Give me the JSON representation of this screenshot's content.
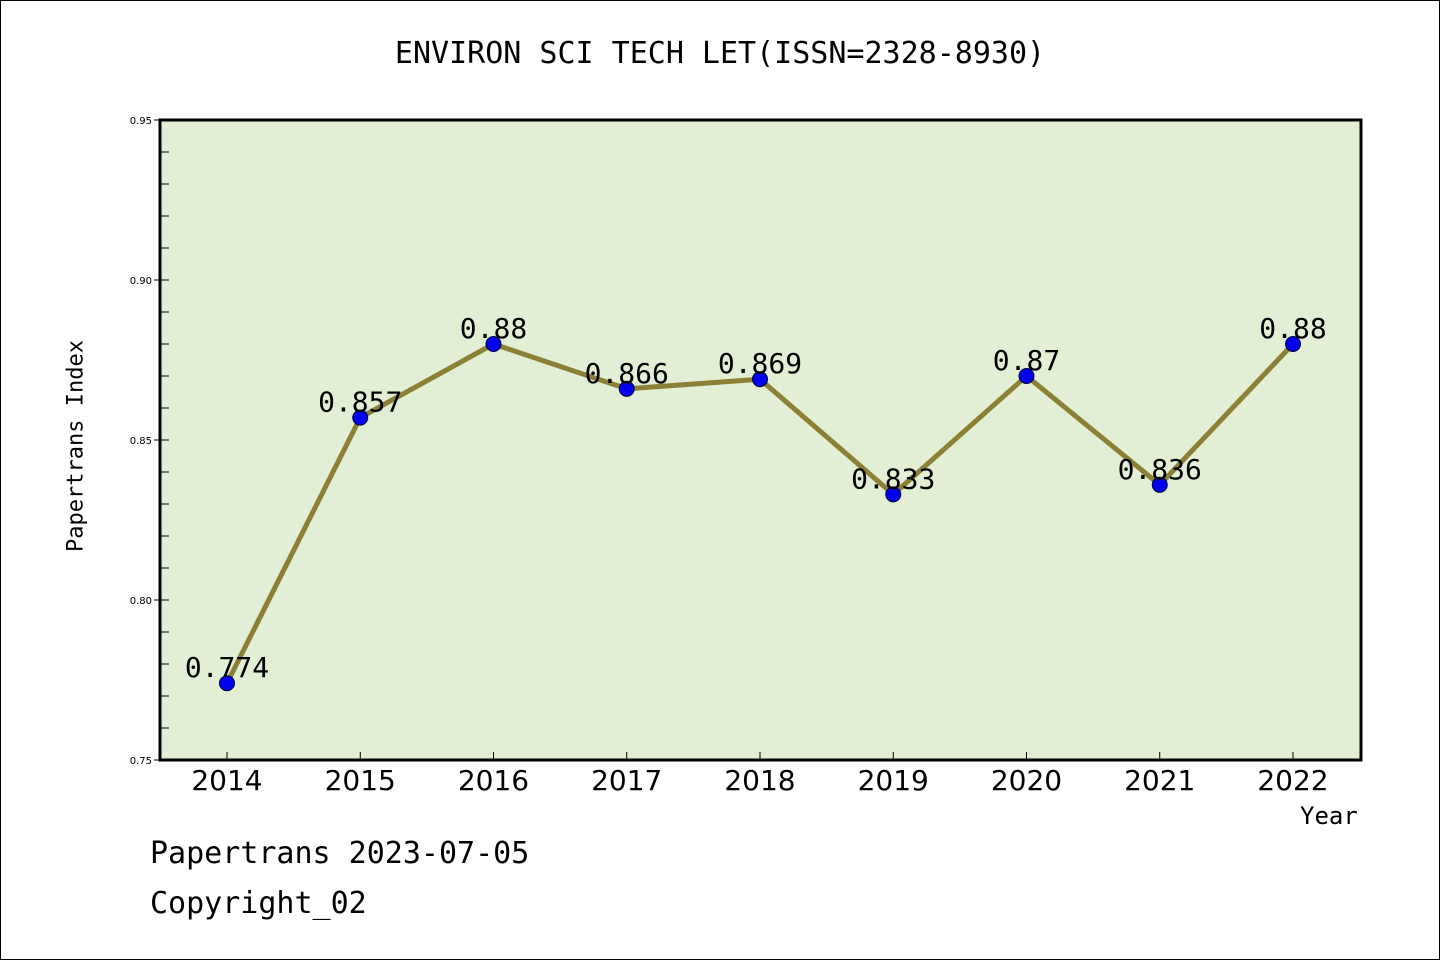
{
  "chart_data": {
    "type": "line",
    "title": "ENVIRON SCI TECH LET(ISSN=2328-8930)",
    "xlabel": "Year",
    "ylabel": "Papertrans Index",
    "categories": [
      "2014",
      "2015",
      "2016",
      "2017",
      "2018",
      "2019",
      "2020",
      "2021",
      "2022"
    ],
    "values": [
      0.774,
      0.857,
      0.88,
      0.866,
      0.869,
      0.833,
      0.87,
      0.836,
      0.88
    ],
    "data_labels": [
      "0.774",
      "0.857",
      "0.88",
      "0.866",
      "0.869",
      "0.833",
      "0.87",
      "0.836",
      "0.88"
    ],
    "ylim": [
      0.75,
      0.95
    ],
    "yticks": [
      "0.75",
      "0.80",
      "0.85",
      "0.90",
      "0.95"
    ],
    "grid": false,
    "legend": "none",
    "colors": {
      "plot_background": "#e2efd4",
      "line": "#8b8036",
      "marker": "#0000ee"
    }
  },
  "footer": {
    "line1": "Papertrans 2023-07-05",
    "line2": "Copyright_02"
  }
}
